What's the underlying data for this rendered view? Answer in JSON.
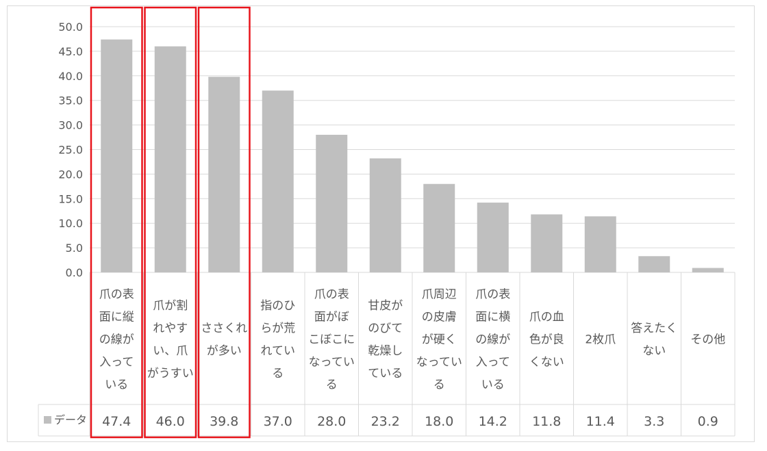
{
  "chart_data": {
    "type": "bar",
    "categories": [
      "爪の表面に縦の線が入っている",
      "爪が割れやすい、爪がうすい",
      "ささくれが多い",
      "指のひらが荒れている",
      "爪の表面がぼこぼこになっている",
      "甘皮がのびて乾燥している",
      "爪周辺の皮膚が硬くなっている",
      "爪の表面に横の線が入っている",
      "爪の血色が良くない",
      "2枚爪",
      "答えたくない",
      "その他"
    ],
    "category_lines": [
      [
        "爪の表",
        "面に縦",
        "の線が",
        "入って",
        "いる"
      ],
      [
        "爪が割",
        "れやす",
        "い、爪",
        "がうすい"
      ],
      [
        "ささくれ",
        "が多い"
      ],
      [
        "指のひ",
        "らが荒",
        "れてい",
        "る"
      ],
      [
        "爪の表",
        "面がぼ",
        "こぼこに",
        "なってい",
        "る"
      ],
      [
        "甘皮が",
        "のびて",
        "乾燥し",
        "ている"
      ],
      [
        "爪周辺",
        "の皮膚",
        "が硬く",
        "なってい",
        "る"
      ],
      [
        "爪の表",
        "面に横",
        "の線が",
        "入って",
        "いる"
      ],
      [
        "爪の血",
        "色が良",
        "くない"
      ],
      [
        "2枚爪"
      ],
      [
        "答えたく",
        "ない"
      ],
      [
        "その他"
      ]
    ],
    "series": [
      {
        "name": "データ",
        "values": [
          47.4,
          46.0,
          39.8,
          37.0,
          28.0,
          23.2,
          18.0,
          14.2,
          11.8,
          11.4,
          3.3,
          0.9
        ],
        "labels": [
          "47.4",
          "46.0",
          "39.8",
          "37.0",
          "28.0",
          "23.2",
          "18.0",
          "14.2",
          "11.8",
          "11.4",
          "3.3",
          "0.9"
        ]
      }
    ],
    "yticks": [
      "0.0",
      "5.0",
      "10.0",
      "15.0",
      "20.0",
      "25.0",
      "30.0",
      "35.0",
      "40.0",
      "45.0",
      "50.0"
    ],
    "ylim": [
      0,
      50
    ],
    "highlighted_categories": [
      0,
      1,
      2
    ],
    "grid": true,
    "legend": "data-table",
    "colors": {
      "bar": "#bfbfbf",
      "grid": "#d9d9d9",
      "text": "#595959",
      "highlight": "#e8141b"
    }
  }
}
